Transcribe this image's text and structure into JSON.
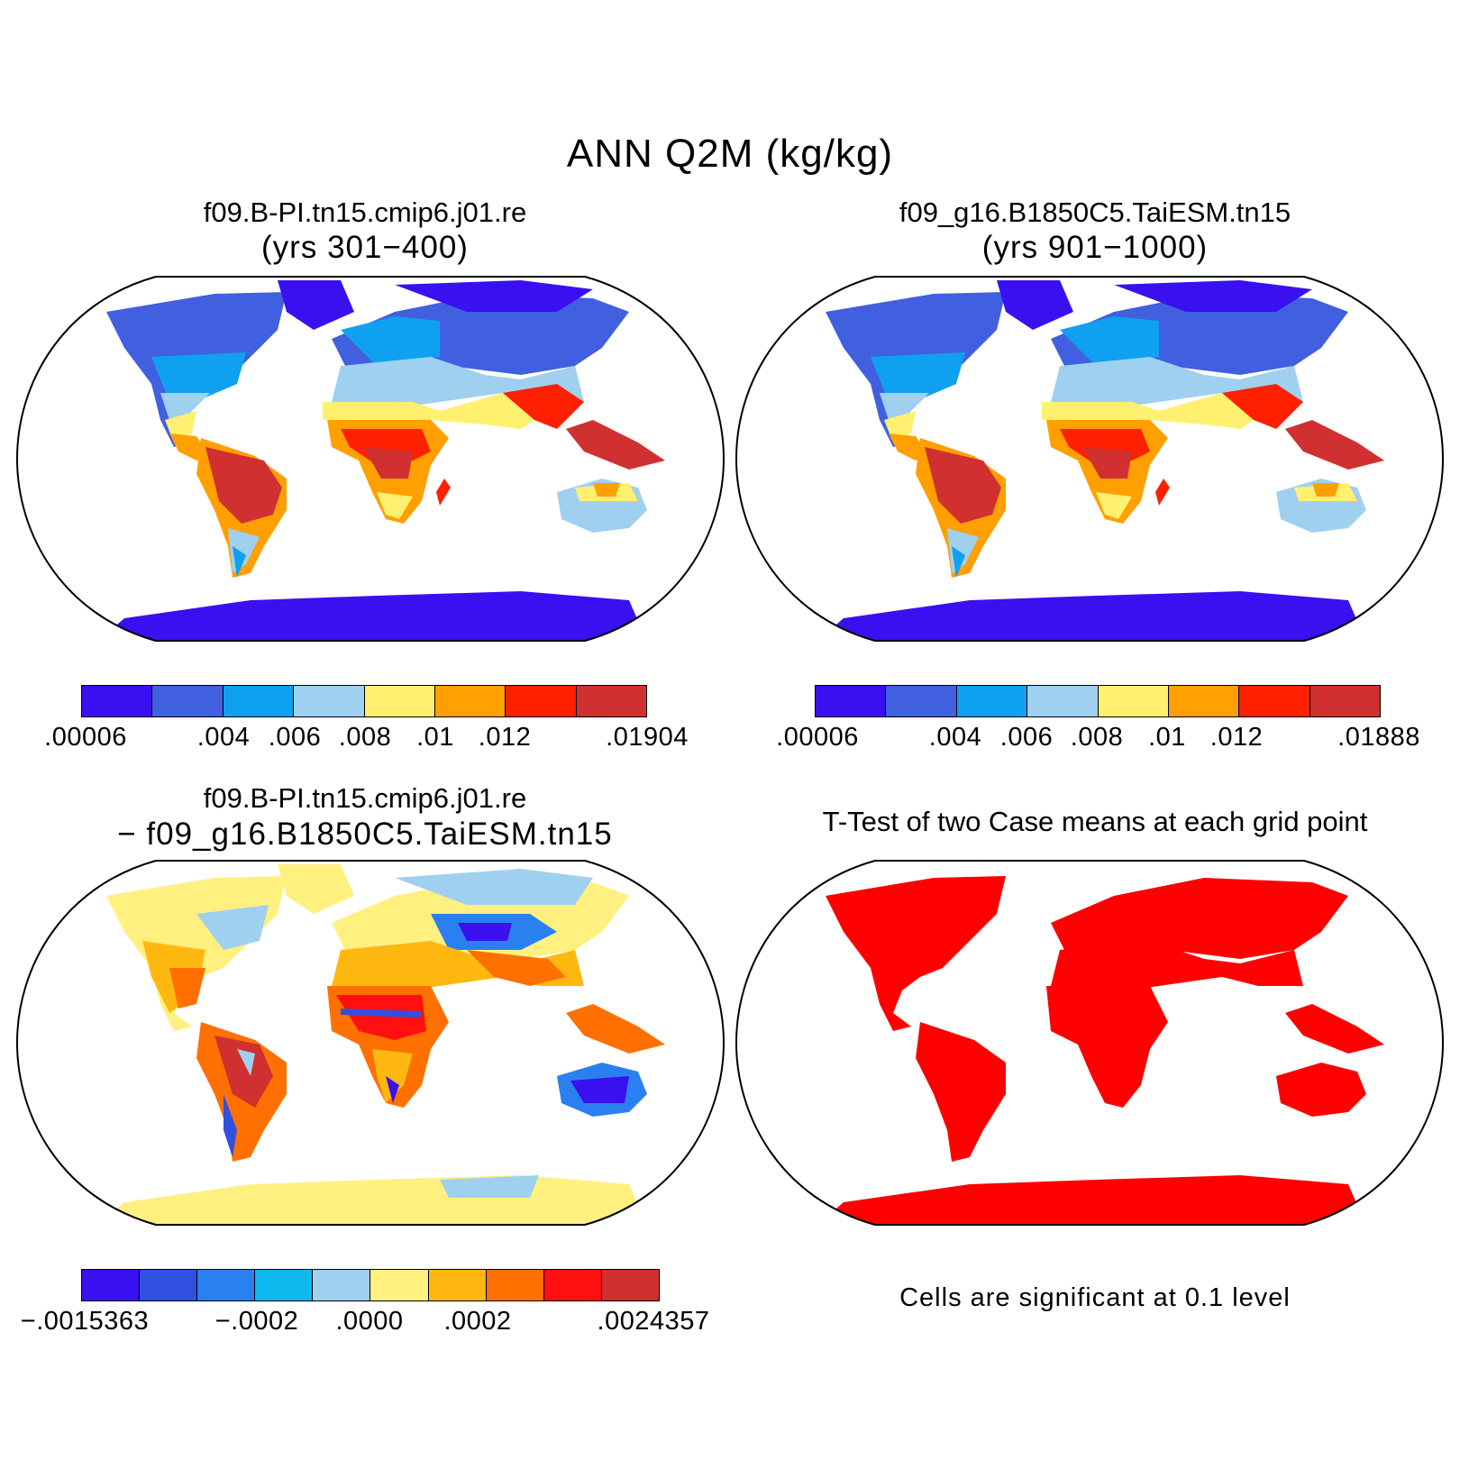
{
  "title": "ANN Q2M (kg/kg)",
  "panels": {
    "case1": {
      "title": "f09.B-PI.tn15.cmip6.j01.re",
      "subtitle": "(yrs 301−400)"
    },
    "case2": {
      "title": "f09_g16.B1850C5.TaiESM.tn15",
      "subtitle": "(yrs 901−1000)"
    },
    "diff": {
      "title": "f09.B-PI.tn15.cmip6.j01.re",
      "subtitle": "− f09_g16.B1850C5.TaiESM.tn15"
    },
    "ttest": {
      "title": "T-Test of two Case means at each grid point",
      "note": "Cells are significant at 0.1 level"
    }
  },
  "colorbars": {
    "case1": {
      "colors": [
        "#3a10f0",
        "#4060e0",
        "#10a0f0",
        "#a0d0f0",
        "#fff070",
        "#ffa000",
        "#ff2000",
        "#d03030"
      ],
      "ticks": [
        ".00006",
        ".004",
        ".006",
        ".008",
        ".01",
        ".012",
        ".01904"
      ]
    },
    "case2": {
      "colors": [
        "#3a10f0",
        "#4060e0",
        "#10a0f0",
        "#a0d0f0",
        "#fff070",
        "#ffa000",
        "#ff2000",
        "#d03030"
      ],
      "ticks": [
        ".00006",
        ".004",
        ".006",
        ".008",
        ".01",
        ".012",
        ".01888"
      ]
    },
    "diff": {
      "colors": [
        "#3a10f0",
        "#3050e0",
        "#2a80f0",
        "#10b8f0",
        "#a0d0f0",
        "#fff080",
        "#ffb810",
        "#ff7000",
        "#ff1010",
        "#d03030"
      ],
      "ticks": [
        "−.0015363",
        "−.0002",
        ".0000",
        ".0002",
        ".0024357"
      ]
    }
  },
  "map_colors": {
    "land_outline": "#000000",
    "significant": "#ff0000"
  }
}
